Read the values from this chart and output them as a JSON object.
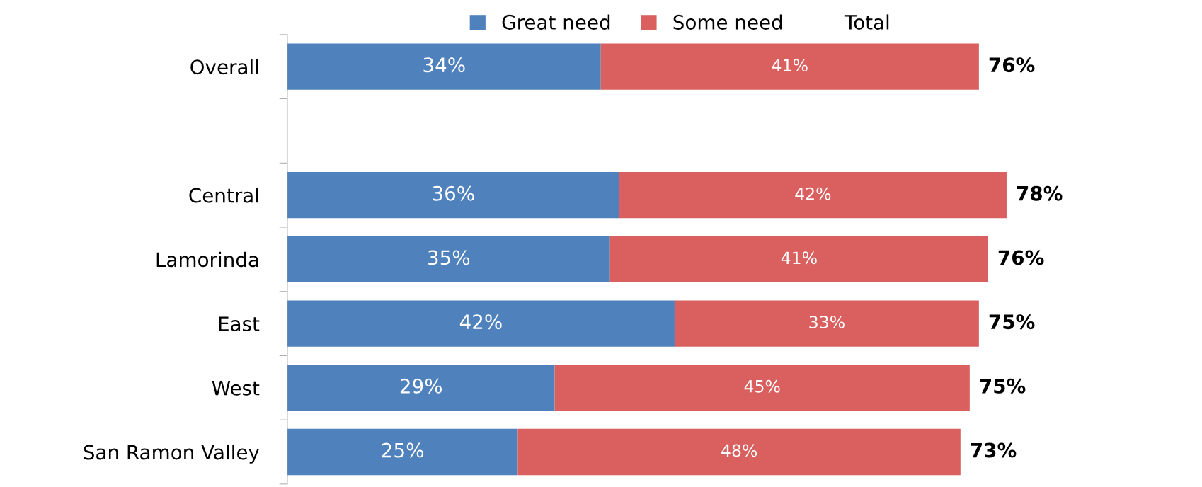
{
  "chart_data": {
    "type": "bar",
    "orientation": "horizontal",
    "stacked": true,
    "categories": [
      "Overall",
      null,
      "Central",
      "Lamorinda",
      "East",
      "West",
      "San Ramon Valley"
    ],
    "series": [
      {
        "name": "Great need",
        "color": "#4f81bd",
        "values": [
          34,
          null,
          36,
          35,
          42,
          29,
          25
        ],
        "value_labels": [
          "34%",
          null,
          "36%",
          "35%",
          "42%",
          "29%",
          "25%"
        ]
      },
      {
        "name": "Some need",
        "color": "#d9605e",
        "values": [
          41,
          null,
          42,
          41,
          33,
          45,
          48
        ],
        "value_labels": [
          "41%",
          null,
          "42%",
          "41%",
          "33%",
          "45%",
          "48%"
        ]
      },
      {
        "name": "Total",
        "values": [
          null,
          null,
          null,
          null,
          null,
          null,
          null
        ]
      }
    ],
    "totals": [
      "76%",
      null,
      "78%",
      "76%",
      "75%",
      "75%",
      "73%"
    ],
    "legend": "top",
    "tick_labels": "y"
  }
}
